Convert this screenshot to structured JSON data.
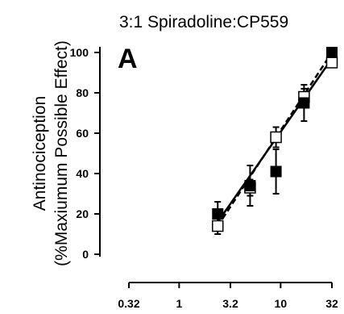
{
  "chart_data": {
    "type": "scatter",
    "title": "3:1 Spiradoline:CP559",
    "panel_label": "A",
    "ylabel_line1": "Antinociception",
    "ylabel_line2": "(%Maxiumum Possible Effect)",
    "xlabel": "",
    "x_scale": "log",
    "xlim": [
      0.32,
      32
    ],
    "ylim": [
      0,
      100
    ],
    "y_ticks": [
      0,
      20,
      40,
      60,
      80,
      100
    ],
    "x_ticks": [
      0.32,
      1,
      3.2,
      10,
      32
    ],
    "x_tick_labels": [
      "0.32",
      "1",
      "3.2",
      "10",
      "32"
    ],
    "grid": false,
    "series": [
      {
        "marker": "filled-square",
        "line_style": "solid",
        "color": "#000000",
        "x": [
          2.4,
          5.0,
          9.0,
          17.0,
          32.0
        ],
        "y": [
          20,
          34,
          41,
          75,
          100
        ],
        "err": [
          6,
          10,
          11,
          9,
          0
        ],
        "fit": {
          "x": [
            2.4,
            32.0
          ],
          "y": [
            16,
            97
          ]
        }
      },
      {
        "marker": "open-square",
        "line_style": "dashed",
        "color": "#000000",
        "x": [
          2.4,
          5.0,
          9.0,
          17.0,
          32.0
        ],
        "y": [
          14,
          33,
          58,
          78,
          95
        ],
        "err": [
          4,
          4,
          5,
          4,
          0
        ],
        "fit": {
          "x": [
            2.4,
            32.0
          ],
          "y": [
            14,
            100
          ]
        }
      }
    ]
  }
}
